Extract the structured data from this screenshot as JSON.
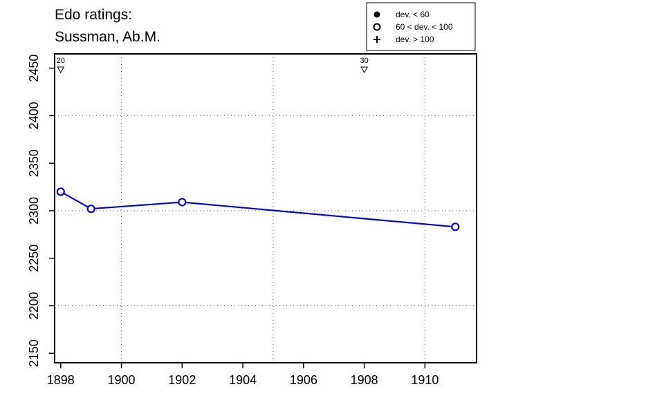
{
  "chart_data": {
    "type": "line",
    "title_lines": [
      "Edo ratings:",
      "Sussman, Ab.M."
    ],
    "xlabel": "",
    "ylabel": "",
    "xlim": [
      1897.8,
      1911.7
    ],
    "ylim": [
      2140,
      2465
    ],
    "x_ticks": [
      1898,
      1900,
      1902,
      1904,
      1906,
      1908,
      1910
    ],
    "y_ticks": [
      2150,
      2200,
      2250,
      2300,
      2350,
      2400,
      2450
    ],
    "x_grid": [
      1900,
      1905,
      1910
    ],
    "y_grid": [
      2200,
      2300,
      2400
    ],
    "grid": true,
    "series": [
      {
        "color": "#0000ee",
        "marker": "open-circle",
        "points": [
          {
            "x": 1898,
            "y": 2320
          },
          {
            "x": 1899,
            "y": 2302
          },
          {
            "x": 1902,
            "y": 2309
          },
          {
            "x": 1911,
            "y": 2283
          }
        ]
      }
    ],
    "game_markers": [
      {
        "x": 1898,
        "label": "20"
      },
      {
        "x": 1908,
        "label": "30"
      }
    ],
    "legend": {
      "position": "top-right",
      "entries": [
        {
          "symbol": "filled-circle",
          "label": "dev. < 60"
        },
        {
          "symbol": "open-circle",
          "label": "60 < dev. < 100"
        },
        {
          "symbol": "plus",
          "label": "dev. > 100"
        }
      ]
    }
  }
}
